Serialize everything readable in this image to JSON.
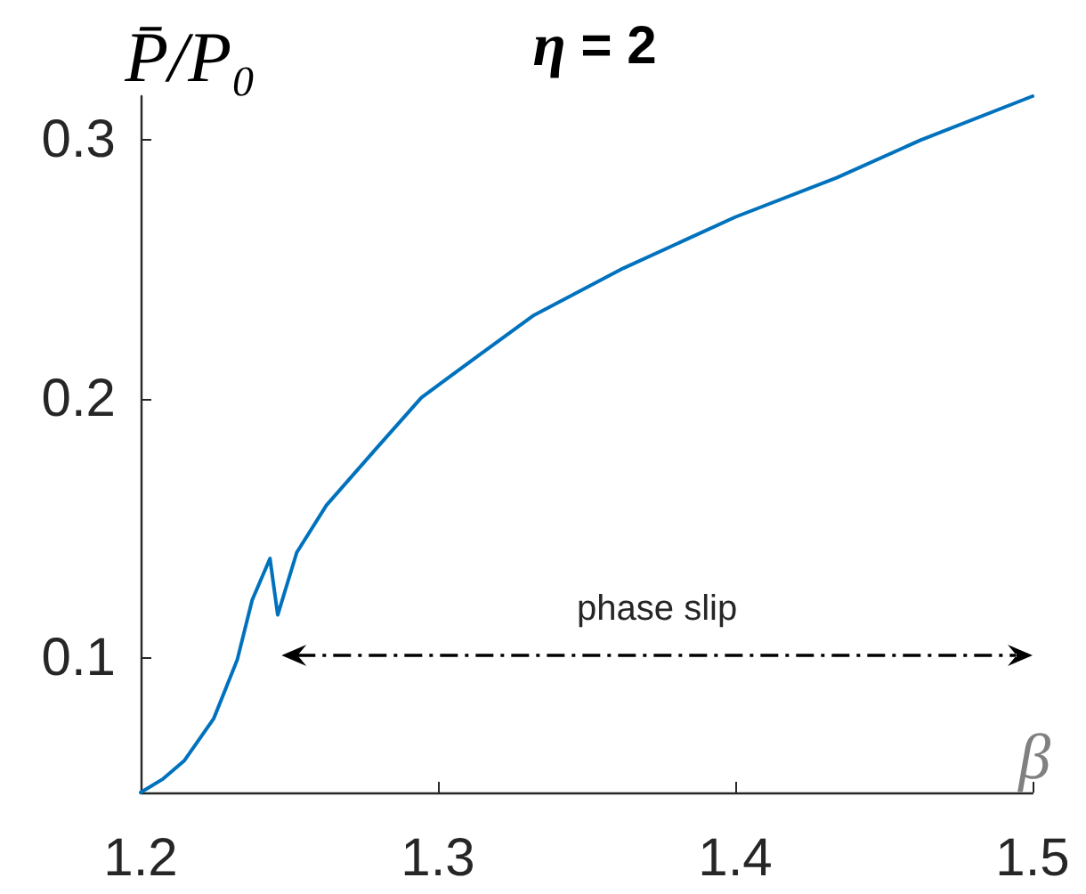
{
  "chart_data": {
    "type": "line",
    "title": "η = 2",
    "xlabel": "β",
    "ylabel": "P̄/P₀",
    "x": [
      1.2,
      1.2076,
      1.2146,
      1.2246,
      1.2325,
      1.2375,
      1.2435,
      1.2461,
      1.2525,
      1.2625,
      1.2784,
      1.2944,
      1.3134,
      1.3323,
      1.3623,
      1.4,
      1.4341,
      1.4623,
      1.5
    ],
    "values": [
      0.048,
      0.0533,
      0.0602,
      0.0766,
      0.0993,
      0.1223,
      0.1384,
      0.1166,
      0.1407,
      0.159,
      0.1798,
      0.2005,
      0.2166,
      0.2324,
      0.2505,
      0.2703,
      0.2855,
      0.3,
      0.317
    ],
    "color": "#0072bd",
    "xlim": [
      1.2,
      1.5
    ],
    "xticks": [
      1.2,
      1.3,
      1.4,
      1.5
    ],
    "ylim": [
      0.048,
      0.317
    ],
    "yticks": [
      0.1,
      0.2,
      0.3
    ],
    "annotations": [
      "phase slip"
    ]
  }
}
